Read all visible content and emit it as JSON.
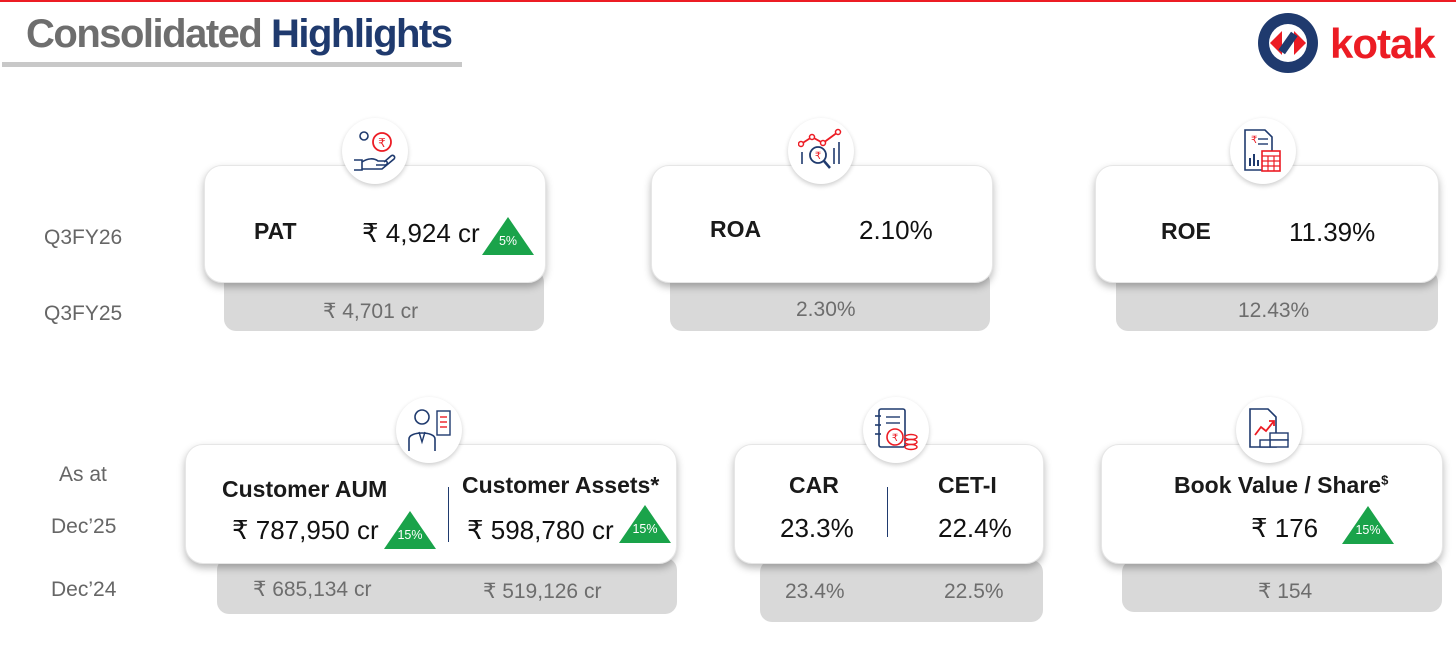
{
  "header": {
    "title_part1": "Consolidated",
    "title_part2": "Highlights",
    "brand": "kotak"
  },
  "row_labels": {
    "q3fy26": "Q3FY26",
    "q3fy25": "Q3FY25",
    "as_at": "As at",
    "dec25": "Dec’25",
    "dec24": "Dec’24"
  },
  "pat": {
    "label": "PAT",
    "current": "₹ 4,924 cr",
    "growth": "5%",
    "previous": "₹ 4,701 cr"
  },
  "roa": {
    "label": "ROA",
    "current": "2.10%",
    "previous": "2.30%"
  },
  "roe": {
    "label": "ROE",
    "current": "11.39%",
    "previous": "12.43%"
  },
  "customer_aum": {
    "label": "Customer AUM",
    "current": "₹ 787,950 cr",
    "growth": "15%",
    "previous": "₹ 685,134 cr"
  },
  "customer_assets": {
    "label": "Customer Assets*",
    "current": "₹ 598,780 cr",
    "growth": "15%",
    "previous": "₹ 519,126 cr"
  },
  "car": {
    "label": "CAR",
    "current": "23.3%",
    "previous": "23.4%"
  },
  "cet1": {
    "label": "CET-I",
    "current": "22.4%",
    "previous": "22.5%"
  },
  "book_value": {
    "label": "Book Value / Share",
    "label_sup": "$",
    "current": "₹ 176",
    "growth": "15%",
    "previous": "₹ 154"
  },
  "colors": {
    "accent_red": "#ec1c24",
    "navy": "#1f3a6e",
    "growth_green": "#1aa34a"
  },
  "icons": {
    "pat": "hand-coin-icon",
    "roa": "chart-magnifier-icon",
    "roe": "report-calculator-icon",
    "aum": "person-document-icon",
    "car": "ledger-coins-icon",
    "book_value": "document-growth-icon"
  }
}
